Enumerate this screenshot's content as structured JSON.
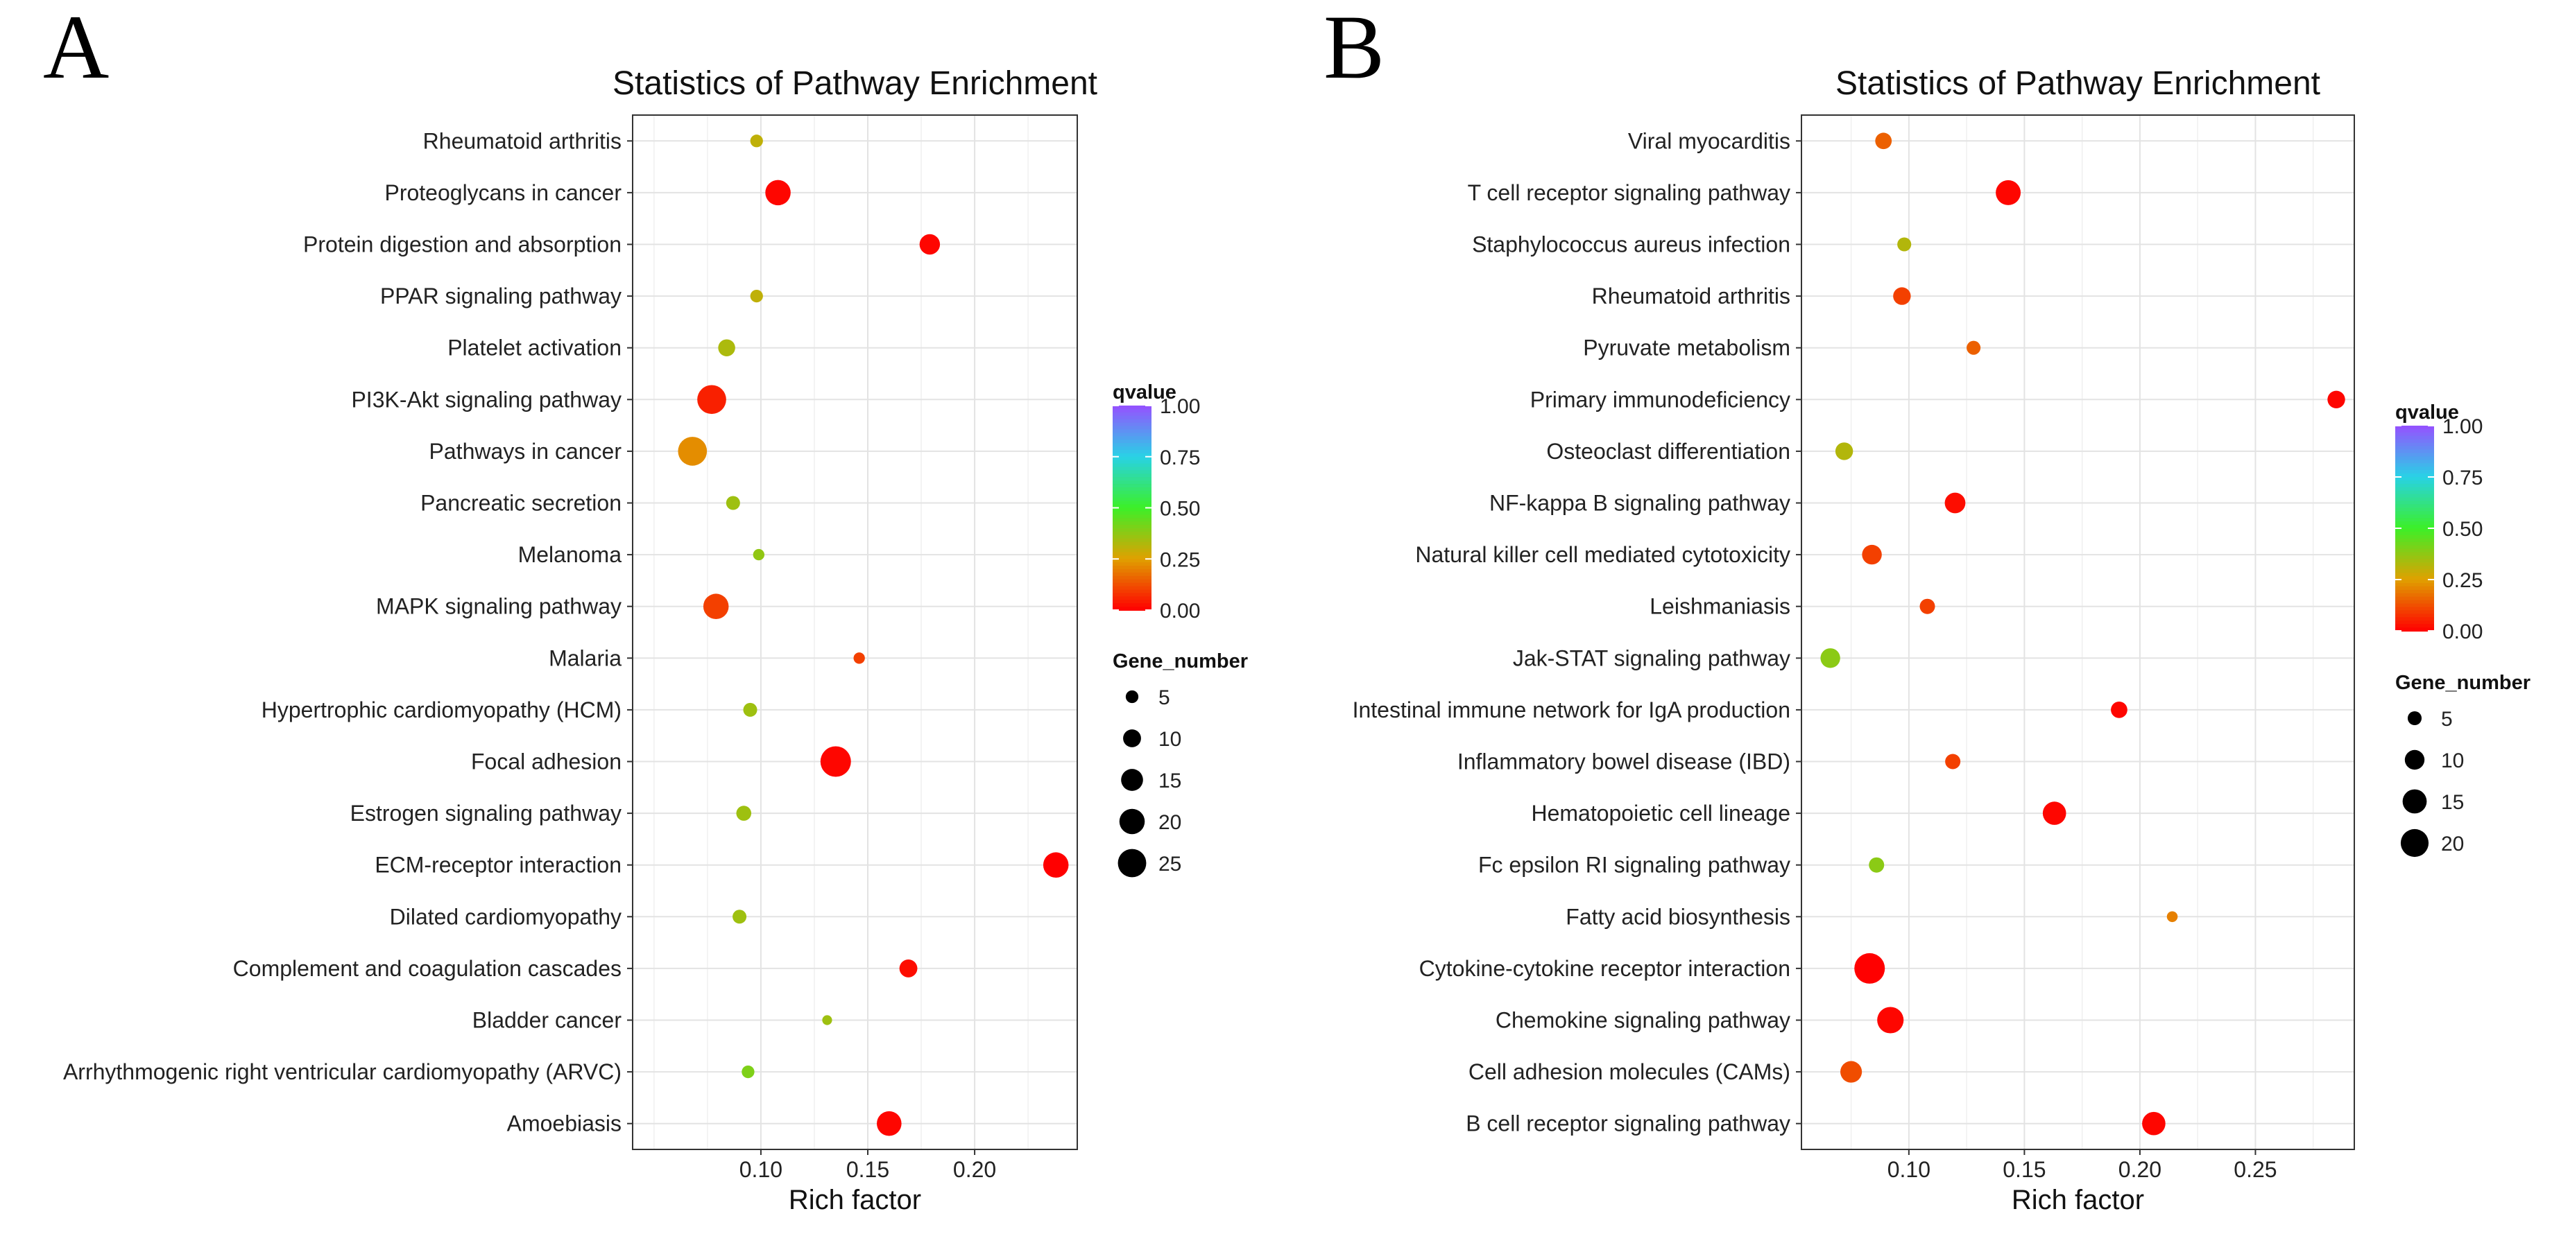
{
  "figure": {
    "panel_labels": [
      "A",
      "B"
    ]
  },
  "chart_data": [
    {
      "type": "scatter",
      "panel": "A",
      "title": "Statistics of Pathway Enrichment",
      "xlabel": "Rich factor",
      "ylabel": "",
      "xlim": [
        0.04,
        0.248
      ],
      "xticks": [
        0.1,
        0.15,
        0.2
      ],
      "xtick_labels": [
        "0.10",
        "0.15",
        "0.20"
      ],
      "grid": true,
      "categories": [
        "Rheumatoid arthritis",
        "Proteoglycans in cancer",
        "Protein digestion and absorption",
        "PPAR signaling pathway",
        "Platelet activation",
        "PI3K-Akt signaling pathway",
        "Pathways in cancer",
        "Pancreatic secretion",
        "Melanoma",
        "MAPK signaling pathway",
        "Malaria",
        "Hypertrophic cardiomyopathy (HCM)",
        "Focal adhesion",
        "Estrogen signaling pathway",
        "ECM-receptor interaction",
        "Dilated cardiomyopathy",
        "Complement and coagulation cascades",
        "Bladder cancer",
        "Arrhythmogenic right ventricular cardiomyopathy (ARVC)",
        "Amoebiasis"
      ],
      "points": [
        {
          "pathway": "Rheumatoid arthritis",
          "rich_factor": 0.098,
          "gene_number": 5,
          "qvalue": 0.3
        },
        {
          "pathway": "Proteoglycans in cancer",
          "rich_factor": 0.108,
          "gene_number": 20,
          "qvalue": 0.01
        },
        {
          "pathway": "Protein digestion and absorption",
          "rich_factor": 0.179,
          "gene_number": 13,
          "qvalue": 0.01
        },
        {
          "pathway": "PPAR signaling pathway",
          "rich_factor": 0.098,
          "gene_number": 5,
          "qvalue": 0.3
        },
        {
          "pathway": "Platelet activation",
          "rich_factor": 0.084,
          "gene_number": 9,
          "qvalue": 0.33
        },
        {
          "pathway": "PI3K-Akt signaling pathway",
          "rich_factor": 0.077,
          "gene_number": 26,
          "qvalue": 0.05
        },
        {
          "pathway": "Pathways in cancer",
          "rich_factor": 0.068,
          "gene_number": 26,
          "qvalue": 0.22
        },
        {
          "pathway": "Pancreatic secretion",
          "rich_factor": 0.087,
          "gene_number": 6,
          "qvalue": 0.35
        },
        {
          "pathway": "Melanoma",
          "rich_factor": 0.099,
          "gene_number": 4,
          "qvalue": 0.37
        },
        {
          "pathway": "MAPK signaling pathway",
          "rich_factor": 0.079,
          "gene_number": 20,
          "qvalue": 0.1
        },
        {
          "pathway": "Malaria",
          "rich_factor": 0.146,
          "gene_number": 4,
          "qvalue": 0.1
        },
        {
          "pathway": "Hypertrophic cardiomyopathy (HCM)",
          "rich_factor": 0.095,
          "gene_number": 6,
          "qvalue": 0.35
        },
        {
          "pathway": "Focal adhesion",
          "rich_factor": 0.135,
          "gene_number": 29,
          "qvalue": 0.01
        },
        {
          "pathway": "Estrogen signaling pathway",
          "rich_factor": 0.092,
          "gene_number": 7,
          "qvalue": 0.35
        },
        {
          "pathway": "ECM-receptor interaction",
          "rich_factor": 0.238,
          "gene_number": 20,
          "qvalue": 0.0
        },
        {
          "pathway": "Dilated cardiomyopathy",
          "rich_factor": 0.09,
          "gene_number": 6,
          "qvalue": 0.35
        },
        {
          "pathway": "Complement and coagulation cascades",
          "rich_factor": 0.169,
          "gene_number": 10,
          "qvalue": 0.02
        },
        {
          "pathway": "Bladder cancer",
          "rich_factor": 0.131,
          "gene_number": 3,
          "qvalue": 0.35
        },
        {
          "pathway": "Arrhythmogenic right ventricular cardiomyopathy (ARVC)",
          "rich_factor": 0.094,
          "gene_number": 5,
          "qvalue": 0.4
        },
        {
          "pathway": "Amoebiasis",
          "rich_factor": 0.16,
          "gene_number": 19,
          "qvalue": 0.01
        }
      ],
      "color_legend": {
        "title": "qvalue",
        "ticks": [
          1.0,
          0.75,
          0.5,
          0.25,
          0.0
        ],
        "tick_labels": [
          "1.00",
          "0.75",
          "0.50",
          "0.25",
          "0.00"
        ]
      },
      "size_legend": {
        "title": "Gene_number",
        "values": [
          5,
          10,
          15,
          20,
          25
        ],
        "labels": [
          "5",
          "10",
          "15",
          "20",
          "25"
        ]
      }
    },
    {
      "type": "scatter",
      "panel": "B",
      "title": "Statistics of Pathway Enrichment",
      "xlabel": "Rich factor",
      "ylabel": "",
      "xlim": [
        0.0535,
        0.2928
      ],
      "xticks": [
        0.1,
        0.15,
        0.2,
        0.25
      ],
      "xtick_labels": [
        "0.10",
        "0.15",
        "0.20",
        "0.25"
      ],
      "grid": true,
      "categories": [
        "Viral myocarditis",
        "T cell receptor signaling pathway",
        "Staphylococcus aureus infection",
        "Rheumatoid arthritis",
        "Pyruvate metabolism",
        "Primary immunodeficiency",
        "Osteoclast differentiation",
        "NF-kappa B signaling pathway",
        "Natural killer cell mediated cytotoxicity",
        "Leishmaniasis",
        "Jak-STAT signaling pathway",
        "Intestinal immune network for IgA production",
        "Inflammatory bowel disease (IBD)",
        "Hematopoietic cell lineage",
        "Fc epsilon RI signaling pathway",
        "Fatty acid biosynthesis",
        "Cytokine-cytokine receptor interaction",
        "Chemokine signaling pathway",
        "Cell adhesion molecules (CAMs)",
        "B cell receptor signaling pathway"
      ],
      "points": [
        {
          "pathway": "Viral myocarditis",
          "rich_factor": 0.089,
          "gene_number": 7,
          "qvalue": 0.15
        },
        {
          "pathway": "T cell receptor signaling pathway",
          "rich_factor": 0.143,
          "gene_number": 16,
          "qvalue": 0.01
        },
        {
          "pathway": "Staphylococcus aureus infection",
          "rich_factor": 0.098,
          "gene_number": 5,
          "qvalue": 0.32
        },
        {
          "pathway": "Rheumatoid arthritis",
          "rich_factor": 0.097,
          "gene_number": 8,
          "qvalue": 0.1
        },
        {
          "pathway": "Pyruvate metabolism",
          "rich_factor": 0.128,
          "gene_number": 5,
          "qvalue": 0.15
        },
        {
          "pathway": "Primary immunodeficiency",
          "rich_factor": 0.285,
          "gene_number": 8,
          "qvalue": 0.01
        },
        {
          "pathway": "Osteoclast differentiation",
          "rich_factor": 0.072,
          "gene_number": 8,
          "qvalue": 0.32
        },
        {
          "pathway": "NF-kappa B signaling pathway",
          "rich_factor": 0.12,
          "gene_number": 11,
          "qvalue": 0.02
        },
        {
          "pathway": "Natural killer cell mediated cytotoxicity",
          "rich_factor": 0.084,
          "gene_number": 10,
          "qvalue": 0.1
        },
        {
          "pathway": "Leishmaniasis",
          "rich_factor": 0.108,
          "gene_number": 6,
          "qvalue": 0.1
        },
        {
          "pathway": "Jak-STAT signaling pathway",
          "rich_factor": 0.066,
          "gene_number": 10,
          "qvalue": 0.38
        },
        {
          "pathway": "Intestinal immune network for IgA production",
          "rich_factor": 0.191,
          "gene_number": 7,
          "qvalue": 0.01
        },
        {
          "pathway": "Inflammatory bowel disease (IBD)",
          "rich_factor": 0.119,
          "gene_number": 6,
          "qvalue": 0.1
        },
        {
          "pathway": "Hematopoietic cell lineage",
          "rich_factor": 0.163,
          "gene_number": 14,
          "qvalue": 0.01
        },
        {
          "pathway": "Fc epsilon RI signaling pathway",
          "rich_factor": 0.086,
          "gene_number": 6,
          "qvalue": 0.38
        },
        {
          "pathway": "Fatty acid biosynthesis",
          "rich_factor": 0.214,
          "gene_number": 3,
          "qvalue": 0.2
        },
        {
          "pathway": "Cytokine-cytokine receptor interaction",
          "rich_factor": 0.083,
          "gene_number": 24,
          "qvalue": 0.0
        },
        {
          "pathway": "Chemokine signaling pathway",
          "rich_factor": 0.092,
          "gene_number": 18,
          "qvalue": 0.01
        },
        {
          "pathway": "Cell adhesion molecules (CAMs)",
          "rich_factor": 0.075,
          "gene_number": 12,
          "qvalue": 0.12
        },
        {
          "pathway": "B cell receptor signaling pathway",
          "rich_factor": 0.206,
          "gene_number": 14,
          "qvalue": 0.01
        }
      ],
      "color_legend": {
        "title": "qvalue",
        "ticks": [
          1.0,
          0.75,
          0.5,
          0.25,
          0.0
        ],
        "tick_labels": [
          "1.00",
          "0.75",
          "0.50",
          "0.25",
          "0.00"
        ]
      },
      "size_legend": {
        "title": "Gene_number",
        "values": [
          5,
          10,
          15,
          20
        ],
        "labels": [
          "5",
          "10",
          "15",
          "20"
        ]
      }
    }
  ]
}
